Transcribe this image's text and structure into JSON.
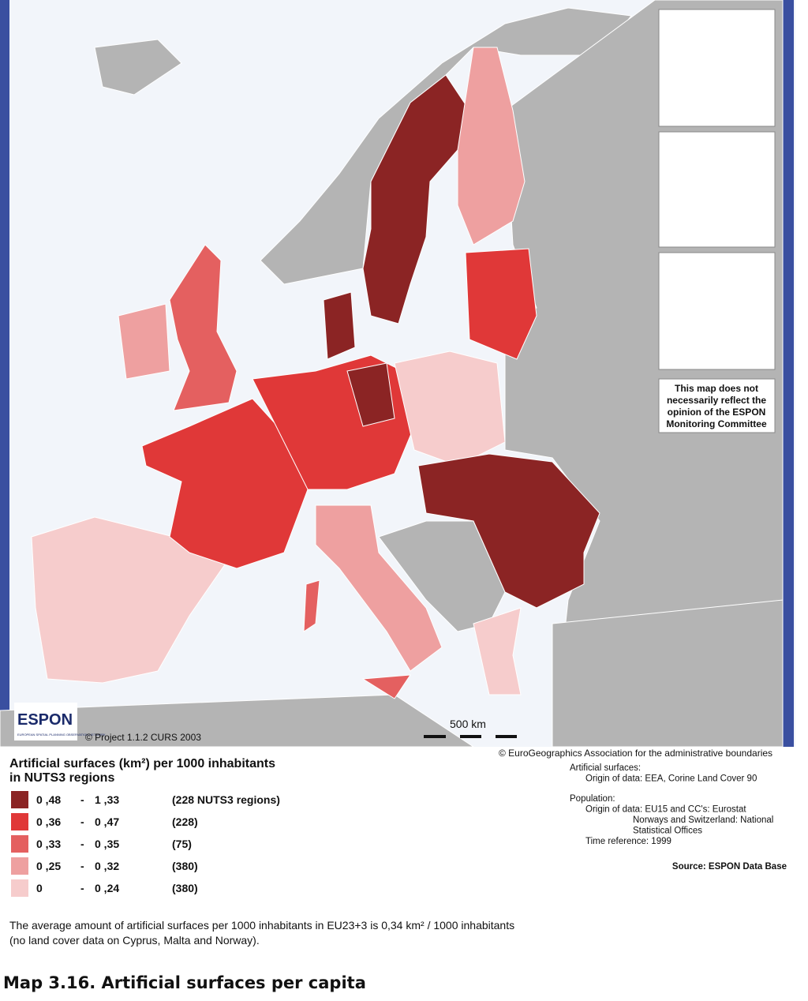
{
  "map": {
    "disclaimer": [
      "This map does not",
      "necessarily reflect the",
      "opinion of the ESPON",
      "Monitoring Committee"
    ],
    "logo": {
      "name": "ESPON",
      "subtitle": "EUROPEAN SPATIAL PLANNING OBSERVATION NETWORK"
    },
    "project": "© Project 1.1.2 CURS 2003",
    "scale": "500 km"
  },
  "legend": {
    "title": [
      "Artificial surfaces (km²) per 1000 inhabitants",
      "in NUTS3 regions"
    ],
    "classes": [
      {
        "from": "0 ,48",
        "sep": "-",
        "to": "1 ,33",
        "count": "(228 NUTS3 regions)",
        "color": "#8b2424"
      },
      {
        "from": "0 ,36",
        "sep": "-",
        "to": "0 ,47",
        "count": "(228)",
        "color": "#e03838"
      },
      {
        "from": "0 ,33",
        "sep": "-",
        "to": "0 ,35",
        "count": "(75)",
        "color": "#e46060"
      },
      {
        "from": "0 ,25",
        "sep": "-",
        "to": "0 ,32",
        "count": "(380)",
        "color": "#eea0a0"
      },
      {
        "from": "0",
        "sep": "-",
        "to": "0 ,24",
        "count": "(380)",
        "color": "#f6cccc"
      }
    ]
  },
  "sources": {
    "copyright": "© EuroGeographics Association for the administrative boundaries",
    "lines": [
      "Artificial surfaces:",
      "Origin of data: EEA, Corine Land Cover 90",
      "Population:",
      "Origin of data: EU15 and CC's: Eurostat",
      "Norways and Switzerland: National",
      "Statistical Offices",
      "Time reference: 1999"
    ],
    "source": "Source: ESPON Data Base"
  },
  "notes": [
    "The average amount of artificial surfaces per 1000 inhabitants  in EU23+3 is 0,34 km² / 1000 inhabitants",
    "(no land cover data on Cyprus, Malta and Norway)."
  ],
  "caption": "Map 3.16. Artificial surfaces per capita"
}
